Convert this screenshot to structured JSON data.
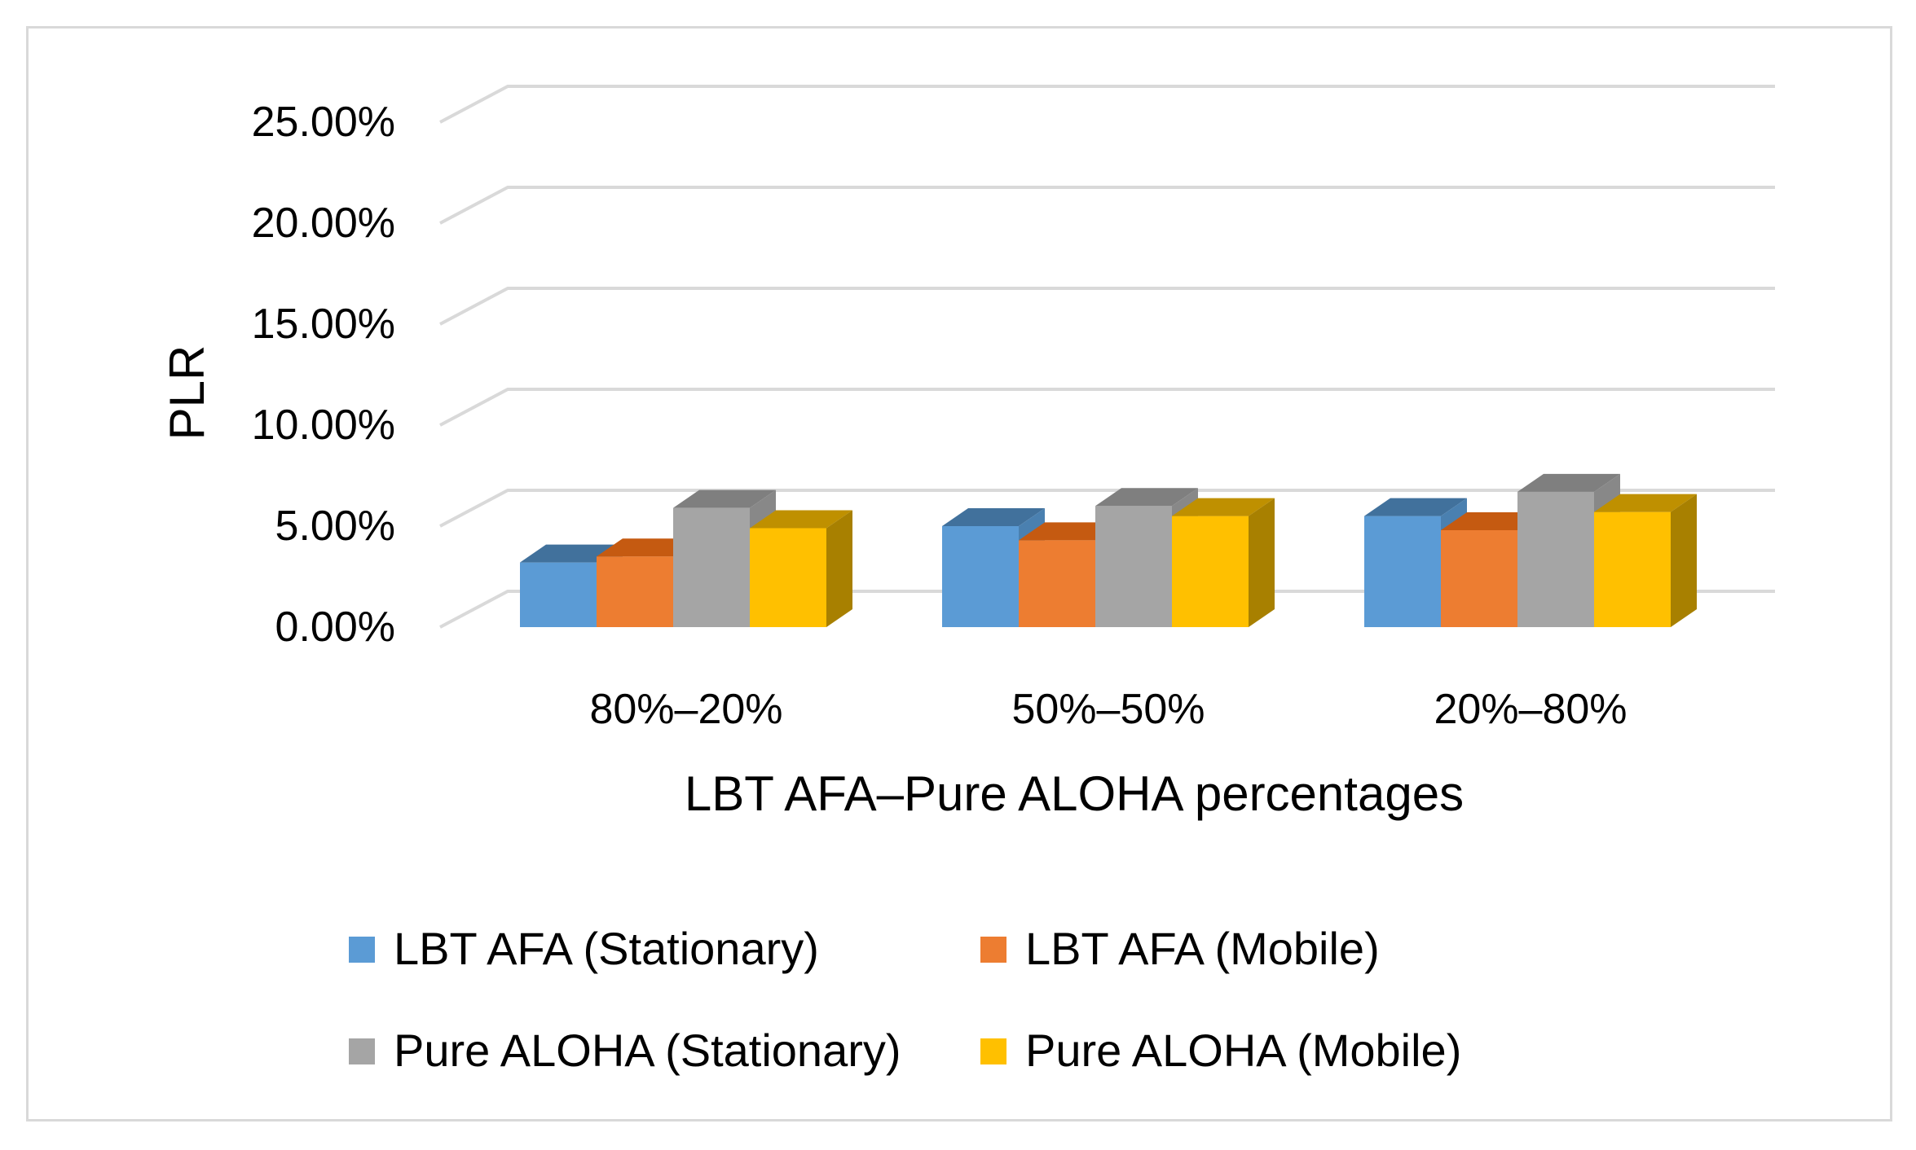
{
  "chart_data": {
    "type": "bar",
    "title": "",
    "xlabel": "LBT AFA–Pure ALOHA percentages",
    "ylabel": "PLR",
    "categories": [
      "80%–20%",
      "50%–50%",
      "20%–80%"
    ],
    "ylim": [
      0,
      25
    ],
    "yticks": [
      0,
      5,
      10,
      15,
      20,
      25
    ],
    "ytick_labels": [
      "0.00%",
      "5.00%",
      "10.00%",
      "15.00%",
      "20.00%",
      "25.00%"
    ],
    "grid": true,
    "legend_position": "bottom",
    "series": [
      {
        "name": "LBT AFA (Stationary)",
        "values": [
          3.2,
          5.0,
          5.5
        ],
        "color": "#5b9bd5",
        "top": "#41719c",
        "side": "#4a80b0"
      },
      {
        "name": "LBT AFA (Mobile)",
        "values": [
          3.5,
          4.3,
          4.8
        ],
        "color": "#ed7d31",
        "top": "#c55a11",
        "side": "#bf6428"
      },
      {
        "name": "Pure ALOHA (Stationary)",
        "values": [
          5.9,
          6.0,
          6.7
        ],
        "color": "#a5a5a5",
        "top": "#7f7f7f",
        "side": "#888888"
      },
      {
        "name": "Pure ALOHA (Mobile)",
        "values": [
          4.9,
          5.5,
          5.7
        ],
        "color": "#ffc000",
        "top": "#bf9000",
        "side": "#a88000"
      }
    ]
  }
}
